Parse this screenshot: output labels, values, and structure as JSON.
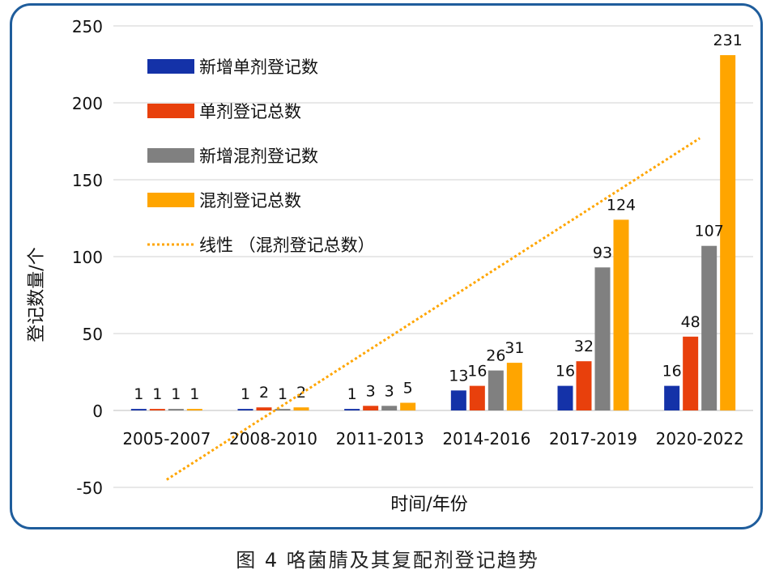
{
  "caption": "图 4 咯菌腈及其复配剂登记趋势",
  "chart_data": {
    "type": "bar",
    "title": "",
    "xlabel": "时间/年份",
    "ylabel": "登记数量/个",
    "ylim": [
      -50,
      250
    ],
    "yticks": [
      -50,
      0,
      50,
      100,
      150,
      200,
      250
    ],
    "grid": true,
    "legend_position": "top-left",
    "categories": [
      "2005-2007",
      "2008-2010",
      "2011-2013",
      "2014-2016",
      "2017-2019",
      "2020-2022"
    ],
    "series": [
      {
        "name": "新增单剂登记数",
        "color": "#1432a8",
        "values": [
          1,
          1,
          1,
          13,
          16,
          16
        ],
        "labels": [
          "1",
          "1",
          "1",
          "13",
          "16",
          "16"
        ]
      },
      {
        "name": "单剂登记总数",
        "color": "#e8400c",
        "values": [
          1,
          2,
          3,
          16,
          32,
          48
        ],
        "labels": [
          "1",
          "2",
          "3",
          "16",
          "32",
          "48"
        ]
      },
      {
        "name": "新增混剂登记数",
        "color": "#808080",
        "values": [
          1,
          1,
          3,
          26,
          93,
          107
        ],
        "labels": [
          "1",
          "1",
          "3",
          "26",
          "93",
          "107"
        ]
      },
      {
        "name": "混剂登记总数",
        "color": "#ffa500",
        "values": [
          1,
          2,
          5,
          31,
          124,
          231
        ],
        "labels": [
          "1",
          "2",
          "5",
          "31",
          "124",
          "231"
        ]
      }
    ],
    "trendline": {
      "name": "线性 （混剂登记总数）",
      "color": "#ffa500",
      "start": -45,
      "end": 177
    }
  }
}
